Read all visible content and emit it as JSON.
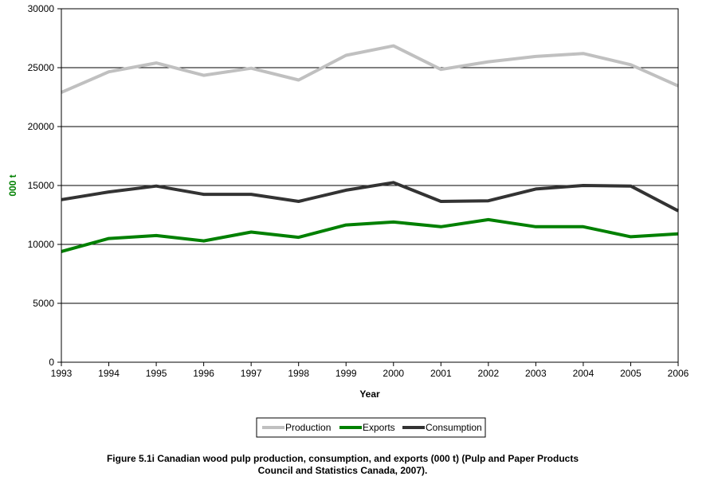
{
  "chart_data": {
    "type": "line",
    "title": "",
    "xlabel": "Year",
    "ylabel": "000 t",
    "x": [
      "1993",
      "1994",
      "1995",
      "1996",
      "1997",
      "1998",
      "1999",
      "2000",
      "2001",
      "2002",
      "2003",
      "2004",
      "2005",
      "2006"
    ],
    "ylim": [
      0,
      30000
    ],
    "yticks": [
      0,
      5000,
      10000,
      15000,
      20000,
      25000,
      30000
    ],
    "grid": true,
    "legend_position": "bottom",
    "series": [
      {
        "name": "Production",
        "color": "#c0c0c0",
        "values": [
          22900,
          24650,
          25400,
          24350,
          24950,
          23950,
          26050,
          26850,
          24850,
          25500,
          25950,
          26200,
          25250,
          23450
        ]
      },
      {
        "name": "Exports",
        "color": "#008000",
        "values": [
          9400,
          10500,
          10750,
          10300,
          11050,
          10600,
          11650,
          11900,
          11500,
          12100,
          11500,
          11500,
          10650,
          10900
        ]
      },
      {
        "name": "Consumption",
        "color": "#333333",
        "values": [
          13800,
          14450,
          14950,
          14250,
          14250,
          13650,
          14600,
          15250,
          13650,
          13700,
          14700,
          15000,
          14950,
          12850
        ]
      }
    ]
  },
  "caption": "Figure 5.1i Canadian wood pulp production, consumption, and exports (000 t) (Pulp and Paper Products\nCouncil and Statistics Canada, 2007)."
}
